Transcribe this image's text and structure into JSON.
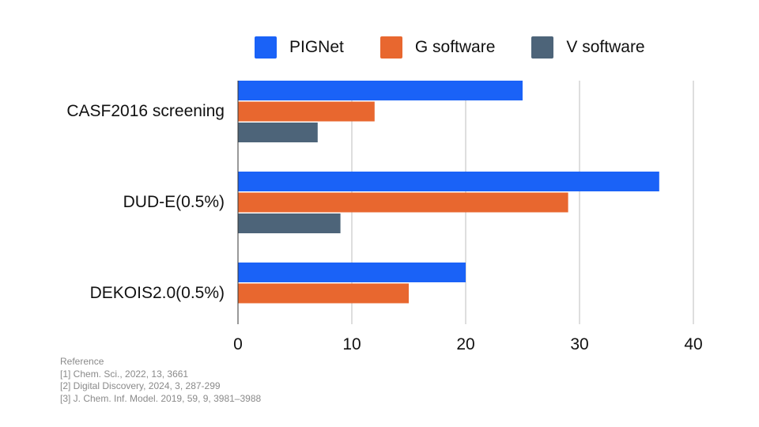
{
  "chart_data": {
    "type": "bar",
    "orientation": "horizontal",
    "categories": [
      "CASF2016 screening",
      "DUD-E(0.5%)",
      "DEKOIS2.0(0.5%)"
    ],
    "series": [
      {
        "name": "PIGNet",
        "color": "#1a62f7",
        "values": [
          25,
          37,
          20
        ]
      },
      {
        "name": "G software",
        "color": "#e8672f",
        "values": [
          12,
          29,
          15
        ]
      },
      {
        "name": "V software",
        "color": "#4d6479",
        "values": [
          7,
          9,
          null
        ]
      }
    ],
    "xlim": [
      0,
      40
    ],
    "xticks": [
      0,
      10,
      20,
      30,
      40
    ],
    "grid": true,
    "legend_position": "top"
  },
  "references": {
    "heading": "Reference",
    "items": [
      "[1] Chem. Sci., 2022, 13, 3661",
      "[2] Digital Discovery, 2024, 3, 287-299",
      "[3] J. Chem. Inf. Model. 2019, 59, 9, 3981–3988"
    ]
  }
}
